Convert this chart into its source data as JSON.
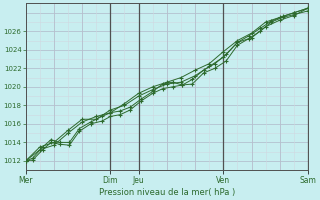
{
  "title": "",
  "xlabel": "Pression niveau de la mer( hPa )",
  "bg_color": "#c8eef0",
  "plot_bg_color": "#c8eef0",
  "line_color": "#2d6a2d",
  "grid_color_major": "#b0b8c8",
  "grid_color_minor": "#d0d8e0",
  "ylim": [
    1011.0,
    1029.0
  ],
  "yticks": [
    1012,
    1014,
    1016,
    1018,
    1020,
    1022,
    1024,
    1026
  ],
  "xlim": [
    0,
    10.0
  ],
  "line1_x": [
    0.0,
    0.25,
    0.6,
    0.9,
    1.2,
    1.55,
    1.9,
    2.3,
    2.7,
    3.0,
    3.35,
    3.7,
    4.1,
    4.5,
    4.85,
    5.2,
    5.55,
    5.9,
    6.3,
    6.7,
    7.1,
    7.5,
    7.9,
    8.3,
    8.7,
    9.1,
    9.5,
    10.0
  ],
  "line1_y": [
    1012.0,
    1012.1,
    1013.2,
    1014.0,
    1013.8,
    1013.7,
    1015.2,
    1016.0,
    1016.3,
    1016.8,
    1017.0,
    1017.5,
    1018.5,
    1019.3,
    1019.8,
    1020.0,
    1020.2,
    1020.3,
    1021.5,
    1022.0,
    1022.8,
    1024.5,
    1025.2,
    1026.0,
    1027.0,
    1027.5,
    1027.8,
    1028.2
  ],
  "line2_x": [
    0.0,
    0.25,
    0.6,
    0.9,
    1.2,
    1.55,
    1.9,
    2.3,
    2.7,
    3.0,
    3.35,
    3.7,
    4.1,
    4.5,
    4.85,
    5.2,
    5.55,
    5.9,
    6.3,
    6.7,
    7.1,
    7.5,
    7.9,
    8.3,
    8.7,
    9.1,
    9.5,
    10.0
  ],
  "line2_y": [
    1012.0,
    1012.3,
    1013.5,
    1014.3,
    1014.0,
    1014.0,
    1015.5,
    1016.2,
    1016.8,
    1017.2,
    1017.4,
    1017.8,
    1018.7,
    1019.5,
    1020.3,
    1020.5,
    1020.2,
    1020.8,
    1021.8,
    1022.5,
    1023.5,
    1024.8,
    1025.5,
    1026.3,
    1027.1,
    1027.6,
    1028.0,
    1028.5
  ],
  "line3_x": [
    0.0,
    0.5,
    1.0,
    1.5,
    2.0,
    2.5,
    3.0,
    3.5,
    4.0,
    4.5,
    5.0,
    5.5,
    6.0,
    6.5,
    7.0,
    7.5,
    8.0,
    8.5,
    9.0,
    9.5,
    10.0
  ],
  "line3_y": [
    1012.0,
    1013.5,
    1014.0,
    1015.3,
    1016.5,
    1016.5,
    1017.5,
    1018.0,
    1019.0,
    1019.7,
    1020.3,
    1020.5,
    1021.2,
    1022.2,
    1023.2,
    1024.8,
    1025.3,
    1026.5,
    1027.2,
    1027.7,
    1028.5
  ],
  "line4_x": [
    0.0,
    0.5,
    1.0,
    1.5,
    2.0,
    2.5,
    3.0,
    3.5,
    4.0,
    4.5,
    5.0,
    5.5,
    6.0,
    6.5,
    7.0,
    7.5,
    8.0,
    8.5,
    9.0,
    9.5,
    10.0
  ],
  "line4_y": [
    1012.0,
    1013.2,
    1013.7,
    1015.0,
    1016.2,
    1016.8,
    1017.2,
    1018.2,
    1019.3,
    1020.0,
    1020.5,
    1021.0,
    1021.8,
    1022.5,
    1023.8,
    1025.0,
    1025.8,
    1027.0,
    1027.5,
    1028.0,
    1028.5
  ],
  "vline_positions": [
    3.0,
    4.0,
    7.0,
    10.0
  ],
  "vline_color": "#505050",
  "xtick_positions": [
    0.0,
    3.0,
    4.0,
    7.0,
    10.0
  ],
  "xtick_labels": [
    "Mer",
    "Dim",
    "Jeu",
    "Ven",
    "Sam"
  ]
}
